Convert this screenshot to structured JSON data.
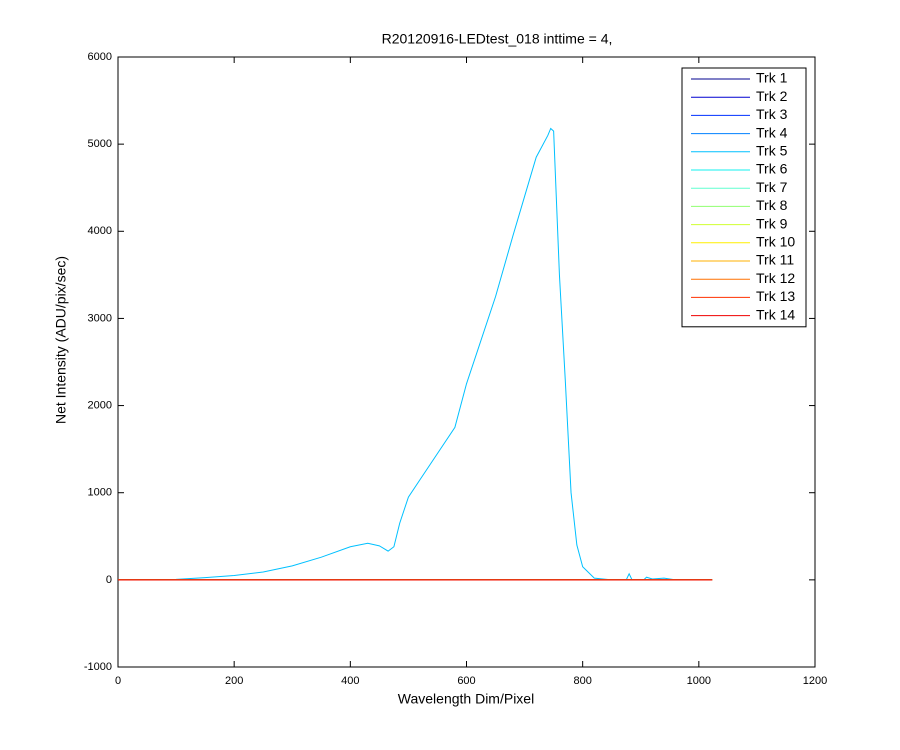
{
  "chart_data": {
    "type": "line",
    "title": "R20120916-LEDtest_018 inttime = 4,",
    "x_label": "Wavelength Dim/Pixel",
    "y_label": "Net Intensity (ADU/pix/sec)",
    "xlim": [
      0,
      1200
    ],
    "xticks": [
      0,
      200,
      400,
      600,
      800,
      1000,
      1200
    ],
    "ylim": [
      -1000,
      6000
    ],
    "yticks": [
      -1000,
      0,
      1000,
      2000,
      3000,
      4000,
      5000,
      6000
    ],
    "grid": false,
    "legend_position": "top-right",
    "series": [
      {
        "name": "Trk 1",
        "color": "#00008f",
        "x": [
          0,
          1023
        ],
        "values": [
          0,
          0
        ]
      },
      {
        "name": "Trk 2",
        "color": "#0000d0",
        "x": [
          0,
          1023
        ],
        "values": [
          0,
          0
        ]
      },
      {
        "name": "Trk 3",
        "color": "#0030ff",
        "x": [
          0,
          1023
        ],
        "values": [
          0,
          0
        ]
      },
      {
        "name": "Trk 4",
        "color": "#0080ff",
        "x": [
          0,
          1023
        ],
        "values": [
          0,
          0
        ]
      },
      {
        "name": "Trk 5",
        "color": "#00c0ff",
        "x": [
          0,
          50,
          100,
          150,
          200,
          250,
          300,
          350,
          400,
          430,
          450,
          465,
          475,
          485,
          500,
          520,
          550,
          580,
          600,
          620,
          650,
          680,
          700,
          720,
          740,
          745,
          750,
          760,
          770,
          780,
          790,
          800,
          820,
          850,
          875,
          880,
          885,
          905,
          910,
          920,
          940,
          960,
          1023
        ],
        "values": [
          0,
          0,
          5,
          25,
          50,
          90,
          160,
          260,
          380,
          420,
          390,
          330,
          380,
          650,
          950,
          1150,
          1450,
          1750,
          2250,
          2650,
          3250,
          3950,
          4400,
          4850,
          5100,
          5180,
          5150,
          3500,
          2300,
          1000,
          400,
          150,
          20,
          0,
          0,
          70,
          0,
          0,
          30,
          10,
          20,
          0,
          0
        ]
      },
      {
        "name": "Trk 6",
        "color": "#10f0ef",
        "x": [
          0,
          1023
        ],
        "values": [
          0,
          0
        ]
      },
      {
        "name": "Trk 7",
        "color": "#60ffd0",
        "x": [
          0,
          1023
        ],
        "values": [
          0,
          0
        ]
      },
      {
        "name": "Trk 8",
        "color": "#90ff70",
        "x": [
          0,
          1023
        ],
        "values": [
          0,
          0
        ]
      },
      {
        "name": "Trk 9",
        "color": "#d0ff30",
        "x": [
          0,
          1023
        ],
        "values": [
          0,
          0
        ]
      },
      {
        "name": "Trk 10",
        "color": "#ffef00",
        "x": [
          0,
          1023
        ],
        "values": [
          0,
          0
        ]
      },
      {
        "name": "Trk 11",
        "color": "#ffb000",
        "x": [
          0,
          1023
        ],
        "values": [
          0,
          0
        ]
      },
      {
        "name": "Trk 12",
        "color": "#ff7000",
        "x": [
          0,
          1023
        ],
        "values": [
          0,
          0
        ]
      },
      {
        "name": "Trk 13",
        "color": "#ff3000",
        "x": [
          0,
          1023
        ],
        "values": [
          0,
          0
        ]
      },
      {
        "name": "Trk 14",
        "color": "#ef0000",
        "x": [
          0,
          1023
        ],
        "values": [
          0,
          0
        ]
      }
    ]
  }
}
